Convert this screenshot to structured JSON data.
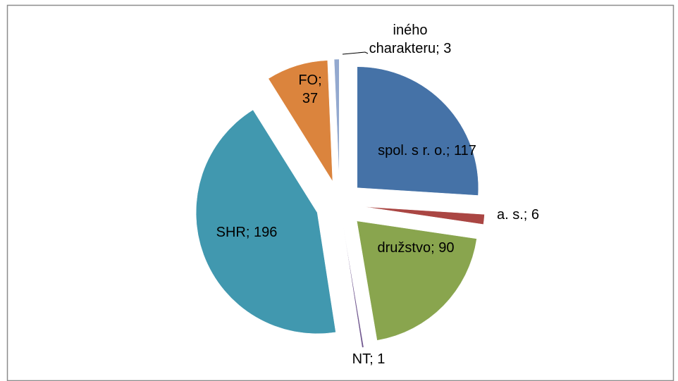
{
  "chart_data": {
    "type": "pie",
    "categories": [
      "spol. s r. o.",
      "a. s.",
      "družstvo",
      "NT",
      "SHR",
      "FO",
      "iného charakteru"
    ],
    "values": [
      117,
      6,
      90,
      1,
      196,
      37,
      3
    ],
    "label_separator": "; ",
    "colors": [
      "#4572a7",
      "#aa4643",
      "#89a54e",
      "#71588f",
      "#4198af",
      "#db843d",
      "#93a9cf"
    ],
    "exploded": true
  }
}
